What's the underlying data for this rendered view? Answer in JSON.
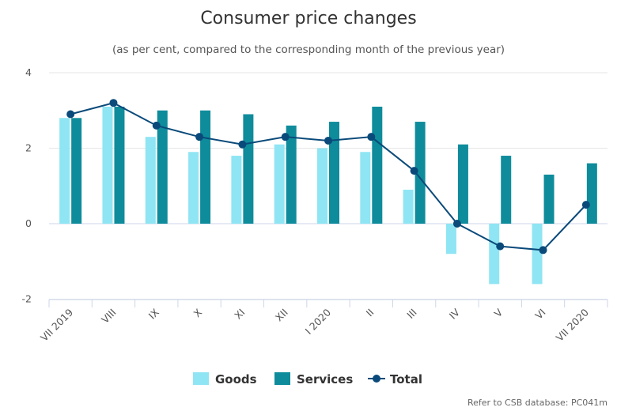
{
  "chart_data": {
    "type": "bar",
    "title": "Consumer price changes",
    "subtitle": "(as per cent, compared to the corresponding month of the previous year)",
    "categories": [
      "VII 2019",
      "VIII",
      "IX",
      "X",
      "XI",
      "XII",
      "I 2020",
      "II",
      "III",
      "IV",
      "V",
      "VI",
      "VII 2020"
    ],
    "series": [
      {
        "name": "Goods",
        "type": "bar",
        "color": "#8fe5f3",
        "values": [
          2.8,
          3.1,
          2.3,
          1.9,
          1.8,
          2.1,
          2.0,
          1.9,
          0.9,
          -0.8,
          -1.6,
          -1.6,
          0.0
        ]
      },
      {
        "name": "Services",
        "type": "bar",
        "color": "#0e8c9b",
        "values": [
          2.8,
          3.1,
          3.0,
          3.0,
          2.9,
          2.6,
          2.7,
          3.1,
          2.7,
          2.1,
          1.8,
          1.3,
          1.6
        ]
      },
      {
        "name": "Total",
        "type": "line",
        "color": "#0a4a7a",
        "values": [
          2.9,
          3.2,
          2.6,
          2.3,
          2.1,
          2.3,
          2.2,
          2.3,
          1.4,
          0.0,
          -0.6,
          -0.7,
          0.5
        ]
      }
    ],
    "ylim": [
      -2,
      4
    ],
    "yticks": [
      -2,
      0,
      2,
      4
    ],
    "grid": true,
    "legend": "bottom-center",
    "xlabel": "",
    "ylabel": ""
  },
  "source_note": "Refer to CSB database: PC041m"
}
